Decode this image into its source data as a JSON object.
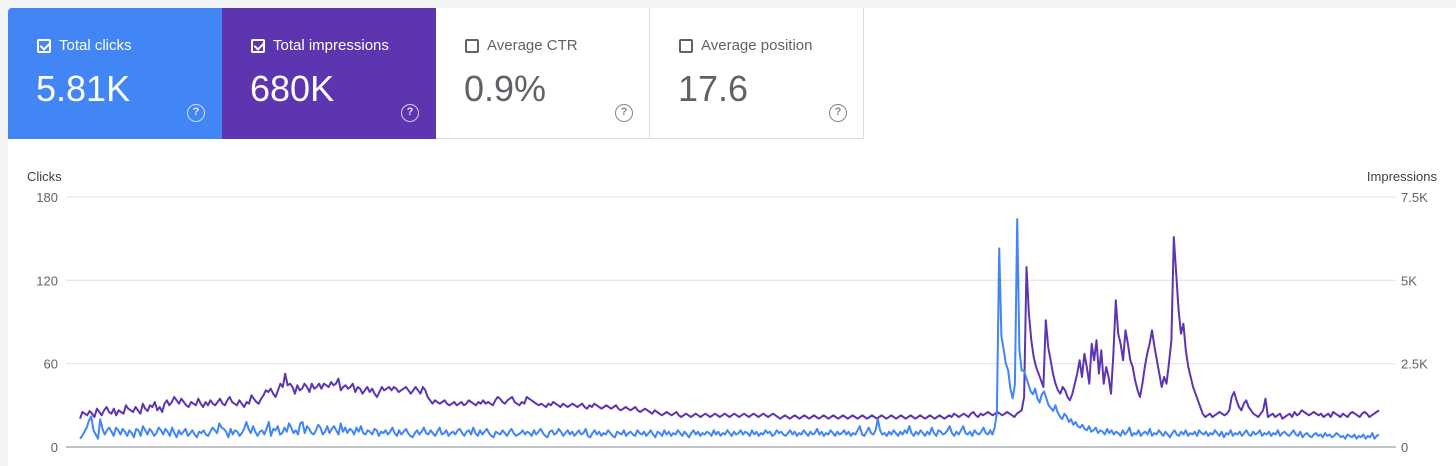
{
  "metrics": [
    {
      "label": "Total clicks",
      "value": "5.81K",
      "checked": true,
      "color": "#4285f4"
    },
    {
      "label": "Total impressions",
      "value": "680K",
      "checked": true,
      "color": "#5e35b1"
    },
    {
      "label": "Average CTR",
      "value": "0.9%",
      "checked": false,
      "color": ""
    },
    {
      "label": "Average position",
      "value": "17.6",
      "checked": false,
      "color": ""
    }
  ],
  "help_glyph": "?",
  "chart_data": {
    "type": "line",
    "y_left_label": "Clicks",
    "y_right_label": "Impressions",
    "y_left_ticks": [
      "180",
      "120",
      "60",
      "0"
    ],
    "y_right_ticks": [
      "7.5K",
      "5K",
      "2.5K",
      "0"
    ],
    "y_left_range": [
      0,
      180
    ],
    "y_right_range": [
      0,
      7500
    ],
    "grid": true,
    "series": [
      {
        "name": "Clicks",
        "axis": "left",
        "color": "#4285f4",
        "values": [
          6,
          8,
          11,
          14,
          19,
          22,
          12,
          9,
          6,
          20,
          13,
          9,
          12,
          14,
          11,
          8,
          14,
          12,
          9,
          13,
          11,
          8,
          12,
          10,
          7,
          13,
          12,
          8,
          15,
          12,
          9,
          13,
          11,
          8,
          10,
          14,
          12,
          9,
          13,
          11,
          8,
          14,
          10,
          7,
          12,
          9,
          11,
          13,
          8,
          10,
          12,
          9,
          7,
          11,
          10,
          12,
          9,
          8,
          11,
          14,
          12,
          10,
          17,
          14,
          13,
          11,
          7,
          13,
          9,
          12,
          11,
          8,
          10,
          13,
          18,
          13,
          10,
          15,
          11,
          8,
          11,
          12,
          9,
          13,
          18,
          8,
          13,
          12,
          15,
          9,
          10,
          14,
          11,
          17,
          14,
          10,
          12,
          9,
          17,
          18,
          10,
          15,
          13,
          10,
          9,
          12,
          16,
          14,
          9,
          11,
          15,
          10,
          13,
          15,
          12,
          9,
          17,
          11,
          14,
          10,
          13,
          12,
          9,
          14,
          11,
          15,
          10,
          9,
          12,
          11,
          9,
          13,
          12,
          8,
          11,
          10,
          12,
          9,
          11,
          14,
          10,
          8,
          12,
          9,
          11,
          13,
          10,
          8,
          7,
          10,
          12,
          9,
          11,
          14,
          10,
          9,
          12,
          10,
          8,
          11,
          14,
          9,
          10,
          12,
          8,
          10,
          11,
          9,
          12,
          13,
          10,
          8,
          11,
          12,
          9,
          14,
          10,
          8,
          12,
          9,
          11,
          13,
          10,
          8,
          7,
          11,
          10,
          9,
          12,
          10,
          8,
          11,
          13,
          10,
          8,
          9,
          10,
          12,
          9,
          11,
          10,
          8,
          12,
          9,
          11,
          13,
          10,
          8,
          7,
          11,
          12,
          9,
          10,
          13,
          11,
          8,
          10,
          12,
          9,
          11,
          8,
          10,
          12,
          9,
          10,
          13,
          8,
          7,
          10,
          12,
          9,
          11,
          8,
          10,
          9,
          12,
          10,
          8,
          7,
          11,
          10,
          9,
          12,
          8,
          10,
          11,
          9,
          8,
          12,
          10,
          9,
          11,
          8,
          10,
          12,
          9,
          7,
          11,
          10,
          8,
          12,
          9,
          11,
          8,
          10,
          9,
          12,
          10,
          8,
          11,
          9,
          7,
          10,
          12,
          9,
          11,
          8,
          10,
          9,
          11,
          10,
          8,
          12,
          9,
          11,
          8,
          10,
          9,
          12,
          10,
          8,
          11,
          9,
          10,
          12,
          9,
          11,
          10,
          8,
          12,
          9,
          11,
          8,
          10,
          9,
          12,
          10,
          11,
          8,
          9,
          12,
          10,
          11,
          9,
          8,
          10,
          12,
          9,
          11,
          8,
          10,
          9,
          12,
          10,
          8,
          11,
          9,
          10,
          13,
          9,
          11,
          8,
          10,
          9,
          12,
          10,
          8,
          11,
          9,
          10,
          12,
          9,
          11,
          8,
          10,
          9,
          12,
          15,
          9,
          8,
          11,
          14,
          10,
          9,
          12,
          20,
          12,
          9,
          10,
          8,
          11,
          9,
          12,
          10,
          8,
          11,
          9,
          12,
          10,
          15,
          10,
          8,
          11,
          9,
          12,
          10,
          8,
          11,
          9,
          14,
          10,
          8,
          12,
          11,
          9,
          10,
          12,
          15,
          10,
          8,
          11,
          9,
          12,
          15,
          10,
          9,
          11,
          8,
          12,
          10,
          9,
          11,
          14,
          10,
          9,
          12,
          9,
          14,
          25,
          143,
          80,
          70,
          60,
          55,
          42,
          35,
          45,
          164,
          70,
          55,
          55,
          50,
          45,
          40,
          38,
          42,
          35,
          32,
          38,
          40,
          35,
          30,
          28,
          26,
          30,
          25,
          22,
          20,
          24,
          22,
          18,
          20,
          16,
          18,
          15,
          14,
          16,
          13,
          12,
          15,
          11,
          12,
          14,
          10,
          12,
          11,
          9,
          13,
          10,
          12,
          9,
          11,
          10,
          8,
          12,
          9,
          11,
          14,
          8,
          10,
          9,
          12,
          8,
          10,
          11,
          9,
          13,
          8,
          10,
          9,
          12,
          10,
          8,
          11,
          9,
          7,
          10,
          12,
          9,
          8,
          11,
          9,
          12,
          8,
          10,
          9,
          11,
          8,
          12,
          10,
          9,
          11,
          8,
          10,
          9,
          12,
          10,
          8,
          11,
          7,
          10,
          9,
          12,
          8,
          10,
          9,
          11,
          8,
          10,
          12,
          9,
          8,
          11,
          9,
          10,
          12,
          8,
          10,
          9,
          11,
          8,
          10,
          9,
          12,
          8,
          10,
          11,
          9,
          8,
          10,
          12,
          9,
          8,
          11,
          7,
          9,
          10,
          8,
          7,
          9,
          10,
          8,
          9,
          7,
          10,
          8,
          9,
          7,
          8,
          10,
          9,
          7,
          8,
          6,
          9,
          8,
          7,
          9,
          6,
          8,
          7,
          9,
          6,
          8,
          7,
          10,
          6,
          8,
          9
        ]
      },
      {
        "name": "Impressions",
        "axis": "right",
        "color": "#5e35b1",
        "values": [
          850,
          1050,
          1000,
          950,
          1080,
          1000,
          900,
          1150,
          1050,
          950,
          1100,
          1200,
          1050,
          1000,
          1150,
          950,
          1100,
          1050,
          1000,
          1250,
          1150,
          1100,
          1050,
          1200,
          1100,
          1000,
          1300,
          1150,
          1080,
          1250,
          1200,
          1350,
          1100,
          1200,
          1050,
          1300,
          1400,
          1250,
          1350,
          1500,
          1400,
          1300,
          1450,
          1350,
          1250,
          1200,
          1350,
          1300,
          1250,
          1450,
          1300,
          1200,
          1350,
          1250,
          1400,
          1300,
          1250,
          1350,
          1450,
          1300,
          1250,
          1400,
          1500,
          1350,
          1300,
          1250,
          1400,
          1300,
          1200,
          1350,
          1300,
          1550,
          1450,
          1350,
          1300,
          1450,
          1550,
          1700,
          1650,
          1750,
          1600,
          1500,
          1700,
          1900,
          1800,
          2200,
          1850,
          1900,
          1800,
          1600,
          1850,
          1700,
          1750,
          1900,
          1800,
          1650,
          1900,
          1750,
          1800,
          1900,
          1750,
          1900,
          1850,
          1800,
          1950,
          1850,
          1900,
          2050,
          1700,
          1800,
          1850,
          1750,
          1800,
          1900,
          1650,
          1800,
          1750,
          1600,
          1700,
          1800,
          1650,
          1750,
          1600,
          1500,
          1650,
          1800,
          1700,
          1750,
          1800,
          1700,
          1800,
          1750,
          1650,
          1700,
          1750,
          1800,
          1700,
          1600,
          1700,
          1800,
          1700,
          1600,
          1800,
          1700,
          1500,
          1400,
          1300,
          1400,
          1350,
          1300,
          1350,
          1400,
          1300,
          1250,
          1300,
          1350,
          1250,
          1300,
          1350,
          1250,
          1300,
          1400,
          1350,
          1300,
          1250,
          1350,
          1300,
          1400,
          1300,
          1350,
          1300,
          1250,
          1400,
          1500,
          1450,
          1350,
          1300,
          1400,
          1450,
          1500,
          1350,
          1300,
          1250,
          1350,
          1300,
          1500,
          1450,
          1400,
          1350,
          1300,
          1250,
          1300,
          1250,
          1200,
          1300,
          1250,
          1350,
          1300,
          1250,
          1200,
          1300,
          1250,
          1200,
          1250,
          1300,
          1250,
          1200,
          1250,
          1300,
          1200,
          1150,
          1250,
          1200,
          1300,
          1250,
          1200,
          1150,
          1200,
          1250,
          1200,
          1150,
          1200,
          1250,
          1150,
          1100,
          1150,
          1200,
          1150,
          1100,
          1150,
          1200,
          1100,
          1050,
          1100,
          1150,
          1100,
          1050,
          1000,
          1100,
          1050,
          1000,
          950,
          1000,
          1050,
          1000,
          950,
          1000,
          1050,
          950,
          900,
          950,
          1000,
          950,
          900,
          950,
          1000,
          950,
          900,
          950,
          1000,
          950,
          900,
          950,
          1000,
          950,
          900,
          950,
          1000,
          950,
          900,
          950,
          1000,
          950,
          900,
          950,
          1000,
          950,
          900,
          950,
          1000,
          950,
          900,
          950,
          1000,
          950,
          900,
          950,
          1000,
          950,
          900,
          850,
          900,
          950,
          900,
          850,
          900,
          950,
          900,
          850,
          900,
          950,
          900,
          850,
          900,
          950,
          900,
          850,
          900,
          950,
          900,
          850,
          900,
          950,
          900,
          850,
          900,
          950,
          900,
          850,
          900,
          950,
          900,
          850,
          900,
          950,
          900,
          850,
          900,
          950,
          900,
          850,
          900,
          950,
          900,
          850,
          900,
          950,
          900,
          850,
          900,
          950,
          900,
          850,
          900,
          950,
          900,
          850,
          900,
          950,
          900,
          850,
          900,
          950,
          900,
          850,
          900,
          950,
          900,
          850,
          900,
          950,
          900,
          1000,
          950,
          900,
          950,
          1000,
          950,
          900,
          1000,
          1050,
          950,
          900,
          1000,
          950,
          1000,
          1050,
          1000,
          950,
          1000,
          1050,
          1000,
          950,
          1000,
          1050,
          1000,
          950,
          900,
          1000,
          1050,
          1100,
          1500,
          5400,
          4000,
          3200,
          2700,
          2400,
          2200,
          2000,
          1800,
          3800,
          3000,
          2600,
          2200,
          1900,
          1700,
          1600,
          1800,
          1700,
          1500,
          1400,
          1600,
          1900,
          2200,
          2600,
          2100,
          2800,
          2400,
          1900,
          3100,
          2600,
          3200,
          2200,
          2900,
          1900,
          2400,
          2100,
          1600,
          2800,
          4400,
          3400,
          3100,
          2600,
          3500,
          3100,
          2600,
          2400,
          2000,
          1700,
          1500,
          1900,
          2400,
          2800,
          3100,
          3500,
          3000,
          2600,
          2200,
          1800,
          2100,
          1900,
          2500,
          3200,
          6300,
          5200,
          4100,
          3400,
          3700,
          2900,
          2400,
          2100,
          1800,
          1600,
          1400,
          1200,
          1000,
          900,
          950,
          1000,
          900,
          950,
          1000,
          1050,
          1000,
          950,
          1000,
          1100,
          1500,
          1650,
          1400,
          1200,
          1100,
          1300,
          1400,
          1200,
          1100,
          1000,
          950,
          900,
          1000,
          1100,
          1450,
          900,
          950,
          1000,
          900,
          950,
          1000,
          850,
          900,
          950,
          1000,
          900,
          1050,
          950,
          1000,
          1100,
          1050,
          1000,
          950,
          1000,
          1050,
          1000,
          950,
          1000,
          900,
          950,
          1000,
          900,
          1050,
          1000,
          950,
          900,
          1000,
          950,
          900,
          1000,
          1050,
          1000,
          950,
          900,
          1000,
          1050,
          1000,
          900,
          950,
          1000,
          1050,
          1100
        ]
      }
    ]
  }
}
